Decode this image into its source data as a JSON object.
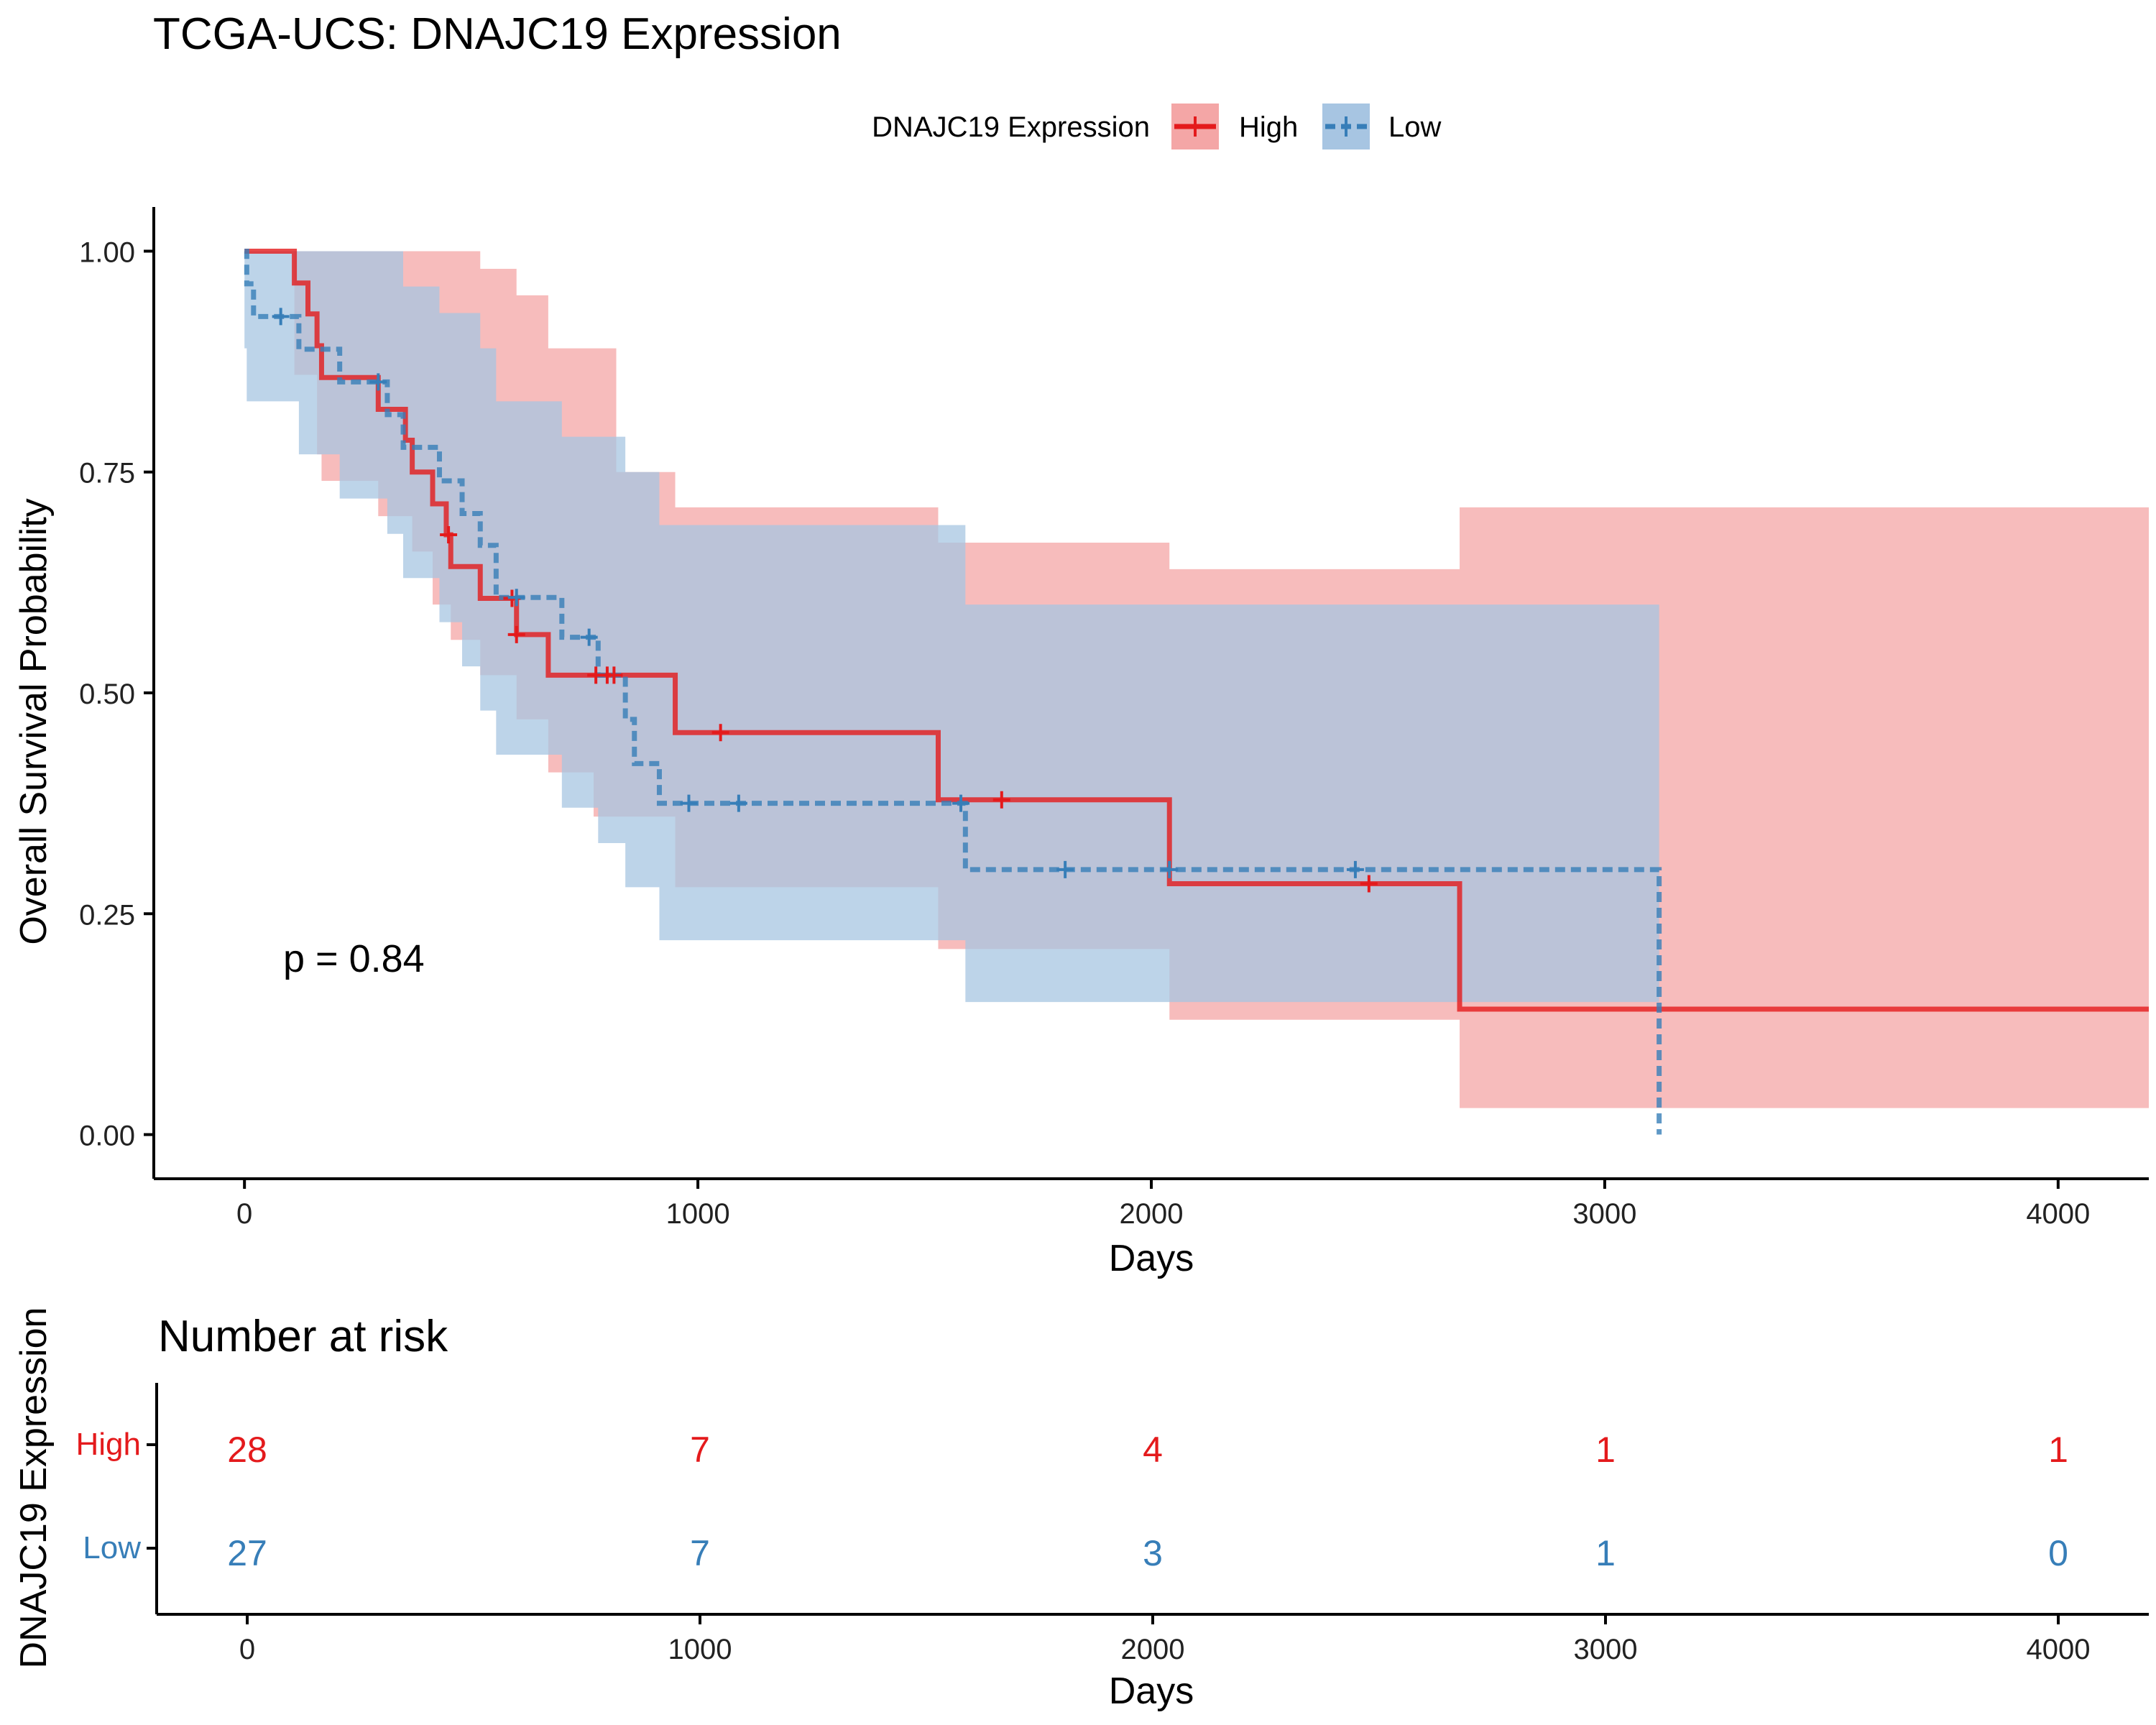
{
  "chart_data": [
    {
      "type": "line",
      "subtype": "kaplan-meier",
      "title": "TCGA-UCS: DNAJC19 Expression",
      "xlabel": "Days",
      "ylabel": "Overall Survival Probability",
      "xlim": [
        -200,
        4200
      ],
      "ylim": [
        -0.05,
        1.05
      ],
      "xticks": [
        0,
        1000,
        2000,
        3000,
        4000
      ],
      "yticks": [
        0.0,
        0.25,
        0.5,
        0.75,
        1.0
      ],
      "xtick_labels": [
        "0",
        "1000",
        "2000",
        "3000",
        "4000"
      ],
      "ytick_labels": [
        "0.00",
        "0.25",
        "0.50",
        "0.75",
        "1.00"
      ],
      "legend": {
        "title": "DNAJC19 Expression",
        "position": "top",
        "entries": [
          "High",
          "Low"
        ]
      },
      "annotation": "p = 0.84",
      "series": [
        {
          "name": "High",
          "color": "#e41a1c",
          "fill": "#f4a6a6",
          "dash": "solid",
          "steps": [
            [
              0,
              1.0
            ],
            [
              110,
              0.964
            ],
            [
              140,
              0.929
            ],
            [
              160,
              0.893
            ],
            [
              170,
              0.857
            ],
            [
              295,
              0.821
            ],
            [
              355,
              0.786
            ],
            [
              370,
              0.75
            ],
            [
              415,
              0.714
            ],
            [
              445,
              0.679
            ],
            [
              455,
              0.643
            ],
            [
              520,
              0.607
            ],
            [
              600,
              0.566
            ],
            [
              670,
              0.52
            ],
            [
              950,
              0.455
            ],
            [
              1530,
              0.379
            ],
            [
              2040,
              0.284
            ],
            [
              2680,
              0.142
            ],
            [
              4200,
              0.142
            ]
          ],
          "ci_lower": [
            [
              0,
              1.0
            ],
            [
              110,
              0.86
            ],
            [
              160,
              0.77
            ],
            [
              170,
              0.74
            ],
            [
              295,
              0.7
            ],
            [
              370,
              0.66
            ],
            [
              415,
              0.6
            ],
            [
              455,
              0.56
            ],
            [
              520,
              0.52
            ],
            [
              600,
              0.47
            ],
            [
              670,
              0.41
            ],
            [
              770,
              0.36
            ],
            [
              950,
              0.28
            ],
            [
              1530,
              0.21
            ],
            [
              2040,
              0.13
            ],
            [
              2680,
              0.03
            ],
            [
              4200,
              0.03
            ]
          ],
          "ci_upper": [
            [
              0,
              1.0
            ],
            [
              450,
              1.0
            ],
            [
              520,
              0.98
            ],
            [
              600,
              0.95
            ],
            [
              670,
              0.89
            ],
            [
              820,
              0.75
            ],
            [
              950,
              0.71
            ],
            [
              1530,
              0.67
            ],
            [
              2040,
              0.64
            ],
            [
              2680,
              0.71
            ],
            [
              4200,
              0.71
            ]
          ],
          "censor_times": [
            450,
            590,
            600,
            775,
            800,
            815,
            1050,
            1670,
            2480
          ]
        },
        {
          "name": "Low",
          "color": "#377eb8",
          "fill": "#a7c5e2",
          "dash": "dashed",
          "steps": [
            [
              0,
              1.0
            ],
            [
              5,
              0.963
            ],
            [
              20,
              0.926
            ],
            [
              120,
              0.889
            ],
            [
              210,
              0.852
            ],
            [
              315,
              0.815
            ],
            [
              350,
              0.778
            ],
            [
              430,
              0.74
            ],
            [
              480,
              0.703
            ],
            [
              520,
              0.667
            ],
            [
              555,
              0.608
            ],
            [
              700,
              0.563
            ],
            [
              780,
              0.52
            ],
            [
              840,
              0.47
            ],
            [
              860,
              0.42
            ],
            [
              915,
              0.375
            ],
            [
              1590,
              0.3
            ],
            [
              3120,
              0.3
            ],
            [
              3120,
              0.0
            ]
          ],
          "ci_lower": [
            [
              0,
              0.89
            ],
            [
              5,
              0.83
            ],
            [
              120,
              0.77
            ],
            [
              210,
              0.72
            ],
            [
              315,
              0.68
            ],
            [
              350,
              0.63
            ],
            [
              430,
              0.58
            ],
            [
              480,
              0.53
            ],
            [
              520,
              0.48
            ],
            [
              555,
              0.43
            ],
            [
              700,
              0.37
            ],
            [
              780,
              0.33
            ],
            [
              840,
              0.28
            ],
            [
              915,
              0.22
            ],
            [
              1590,
              0.15
            ],
            [
              3120,
              0.15
            ]
          ],
          "ci_upper": [
            [
              0,
              1.0
            ],
            [
              310,
              1.0
            ],
            [
              350,
              0.96
            ],
            [
              430,
              0.93
            ],
            [
              520,
              0.89
            ],
            [
              555,
              0.83
            ],
            [
              700,
              0.79
            ],
            [
              840,
              0.75
            ],
            [
              915,
              0.69
            ],
            [
              1590,
              0.6
            ],
            [
              3120,
              0.6
            ]
          ],
          "censor_times": [
            80,
            295,
            600,
            760,
            980,
            1090,
            1580,
            1810,
            2040,
            2450
          ]
        }
      ]
    },
    {
      "type": "table",
      "title": "Number at risk",
      "xlabel": "Days",
      "ylabel": "DNAJC19 Expression",
      "xticks": [
        0,
        1000,
        2000,
        3000,
        4000
      ],
      "xtick_labels": [
        "0",
        "1000",
        "2000",
        "3000",
        "4000"
      ],
      "rows": [
        {
          "name": "High",
          "color": "#e41a1c",
          "values": [
            "28",
            "7",
            "4",
            "1",
            "1"
          ]
        },
        {
          "name": "Low",
          "color": "#377eb8",
          "values": [
            "27",
            "7",
            "3",
            "1",
            "0"
          ]
        }
      ]
    }
  ]
}
